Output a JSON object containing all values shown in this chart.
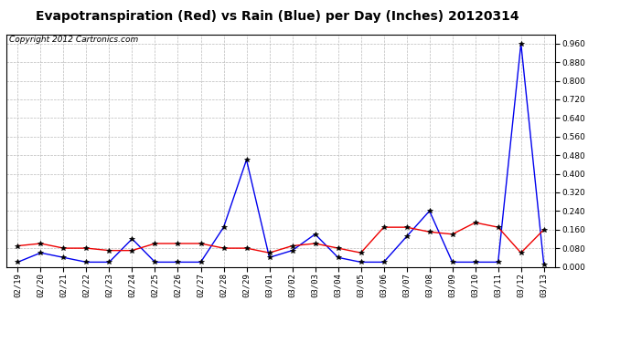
{
  "title": "Evapotranspiration (Red) vs Rain (Blue) per Day (Inches) 20120314",
  "copyright": "Copyright 2012 Cartronics.com",
  "x_labels": [
    "02/19",
    "02/20",
    "02/21",
    "02/22",
    "02/23",
    "02/24",
    "02/25",
    "02/26",
    "02/27",
    "02/28",
    "02/29",
    "03/01",
    "03/02",
    "03/03",
    "03/04",
    "03/05",
    "03/06",
    "03/07",
    "03/08",
    "03/09",
    "03/10",
    "03/11",
    "03/12",
    "03/13"
  ],
  "rain_blue": [
    0.02,
    0.06,
    0.04,
    0.02,
    0.02,
    0.12,
    0.02,
    0.02,
    0.02,
    0.17,
    0.46,
    0.04,
    0.07,
    0.14,
    0.04,
    0.02,
    0.02,
    0.13,
    0.24,
    0.02,
    0.02,
    0.02,
    0.96,
    0.01
  ],
  "et_red": [
    0.09,
    0.1,
    0.08,
    0.08,
    0.07,
    0.07,
    0.1,
    0.1,
    0.1,
    0.08,
    0.08,
    0.06,
    0.09,
    0.1,
    0.08,
    0.06,
    0.17,
    0.17,
    0.15,
    0.14,
    0.19,
    0.17,
    0.06,
    0.16
  ],
  "ylim": [
    0.0,
    1.0
  ],
  "yticks": [
    0.0,
    0.08,
    0.16,
    0.24,
    0.32,
    0.4,
    0.48,
    0.56,
    0.64,
    0.72,
    0.8,
    0.88,
    0.96
  ],
  "bg_color": "#ffffff",
  "grid_color": "#bbbbbb",
  "blue_color": "#0000ee",
  "red_color": "#ee0000",
  "title_fontsize": 10,
  "tick_fontsize": 6.5,
  "copyright_fontsize": 6.5,
  "marker_size": 4
}
